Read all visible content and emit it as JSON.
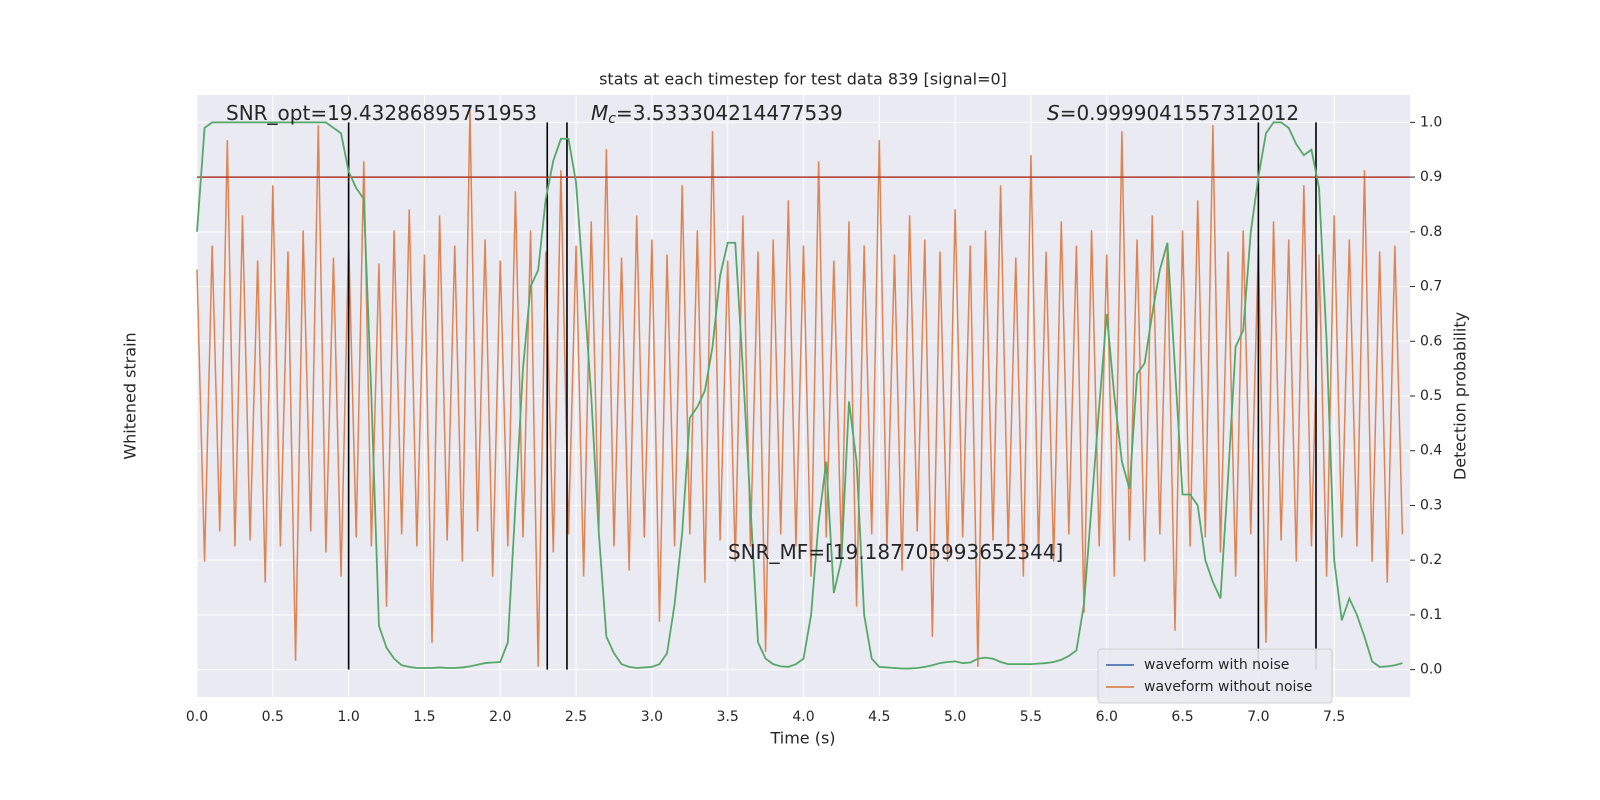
{
  "chart_data": {
    "type": "line",
    "title": "stats at each timestep for test data 839 [signal=0]",
    "xlabel": "Time (s)",
    "ylabel": "Whitened strain",
    "y2label": "Detection probability",
    "xlim": [
      0,
      8.0
    ],
    "ylim": [
      -1,
      1
    ],
    "y2lim": [
      -0.05,
      1.05
    ],
    "xticks": [
      {
        "value": 0,
        "label": "0.0"
      },
      0.5,
      {
        "value": 1,
        "label": "1.0"
      },
      1.5,
      {
        "value": 2,
        "label": "2.0"
      },
      2.5,
      {
        "value": 3,
        "label": "3.0"
      },
      3.5,
      {
        "value": 4,
        "label": "4.0"
      },
      4.5,
      {
        "value": 5,
        "label": "5.0"
      },
      5.5,
      {
        "value": 6,
        "label": "6.0"
      },
      6.5,
      {
        "value": 7,
        "label": "7.0"
      },
      7.5
    ],
    "y2ticks": [
      {
        "value": 0,
        "label": "0.0"
      },
      0.1,
      0.2,
      0.3,
      0.4,
      0.5,
      0.6,
      0.7,
      0.8,
      0.9,
      {
        "value": 1,
        "label": "1.0"
      }
    ],
    "grid": true,
    "legend": "lower right",
    "x": [
      0,
      0.05,
      0.1,
      0.15,
      0.2,
      0.25,
      0.3,
      0.35,
      0.4,
      0.45,
      0.5,
      0.55,
      0.6,
      0.65,
      0.7,
      0.75,
      0.8,
      0.85,
      0.9,
      0.95,
      1,
      1.05,
      1.1,
      1.15,
      1.2,
      1.25,
      1.3,
      1.35,
      1.4,
      1.45,
      1.5,
      1.55,
      1.6,
      1.65,
      1.7,
      1.75,
      1.8,
      1.85,
      1.9,
      1.95,
      2,
      2.05,
      2.1,
      2.15,
      2.2,
      2.25,
      2.3,
      2.35,
      2.4,
      2.45,
      2.5,
      2.55,
      2.6,
      2.65,
      2.7,
      2.75,
      2.8,
      2.85,
      2.9,
      2.95,
      3,
      3.05,
      3.1,
      3.15,
      3.2,
      3.25,
      3.3,
      3.35,
      3.4,
      3.45,
      3.5,
      3.55,
      3.6,
      3.65,
      3.7,
      3.75,
      3.8,
      3.85,
      3.9,
      3.95,
      4,
      4.05,
      4.1,
      4.15,
      4.2,
      4.25,
      4.3,
      4.35,
      4.4,
      4.45,
      4.5,
      4.55,
      4.6,
      4.65,
      4.7,
      4.75,
      4.8,
      4.85,
      4.9,
      4.95,
      5,
      5.05,
      5.1,
      5.15,
      5.2,
      5.25,
      5.3,
      5.35,
      5.4,
      5.45,
      5.5,
      5.55,
      5.6,
      5.65,
      5.7,
      5.75,
      5.8,
      5.85,
      5.9,
      5.95,
      6,
      6.05,
      6.1,
      6.15,
      6.2,
      6.25,
      6.3,
      6.35,
      6.4,
      6.45,
      6.5,
      6.55,
      6.6,
      6.65,
      6.7,
      6.75,
      6.8,
      6.85,
      6.9,
      6.95,
      7,
      7.05,
      7.1,
      7.15,
      7.2,
      7.25,
      7.3,
      7.35,
      7.4,
      7.45,
      7.5,
      7.55,
      7.6,
      7.65,
      7.7,
      7.75,
      7.8,
      7.85,
      7.9,
      7.95
    ],
    "series": [
      {
        "name": "waveform with noise",
        "color": "#4c72b0"
      },
      {
        "name": "waveform without noise",
        "color": "#dd8452",
        "values": [
          0.42,
          -0.55,
          0.5,
          -0.45,
          0.85,
          -0.5,
          0.6,
          -0.48,
          0.45,
          -0.62,
          0.7,
          -0.5,
          0.48,
          -0.88,
          0.55,
          -0.45,
          0.9,
          -0.52,
          0.46,
          -0.6,
          0.52,
          -0.47,
          0.78,
          -0.5,
          0.44,
          -0.7,
          0.55,
          -0.46,
          0.62,
          -0.5,
          0.47,
          -0.82,
          0.6,
          -0.48,
          0.5,
          -0.55,
          0.95,
          -0.45,
          0.52,
          -0.6,
          0.45,
          -0.5,
          0.68,
          -0.47,
          0.55,
          -0.9,
          0.48,
          -0.52,
          0.75,
          -0.46,
          0.5,
          -0.6,
          0.58,
          -0.45,
          0.82,
          -0.5,
          0.46,
          -0.58,
          0.6,
          -0.47,
          0.52,
          -0.75,
          0.47,
          -0.5,
          0.7,
          -0.46,
          0.55,
          -0.62,
          0.88,
          -0.48,
          0.45,
          -0.55,
          0.6,
          -0.5,
          0.48,
          -0.85,
          0.52,
          -0.46,
          0.65,
          -0.5,
          0.5,
          -0.6,
          0.78,
          -0.47,
          0.45,
          -0.52,
          0.58,
          -0.7,
          0.5,
          -0.46,
          0.85,
          -0.5,
          0.47,
          -0.58,
          0.6,
          -0.45,
          0.52,
          -0.8,
          0.48,
          -0.55,
          0.62,
          -0.47,
          0.5,
          -0.9,
          0.55,
          -0.48,
          0.7,
          -0.5,
          0.46,
          -0.6,
          0.8,
          -0.52,
          0.48,
          -0.55,
          0.58,
          -0.46,
          0.5,
          -0.72,
          0.55,
          -0.5,
          0.47,
          -0.6,
          0.88,
          -0.48,
          0.52,
          -0.55,
          0.6,
          -0.46,
          0.5,
          -0.78,
          0.55,
          -0.5,
          0.65,
          -0.47,
          0.9,
          -0.52,
          0.48,
          -0.6,
          0.55,
          -0.46,
          0.5,
          -0.82,
          0.58,
          -0.48,
          0.52,
          -0.55,
          0.7,
          -0.5,
          0.47,
          -0.6,
          0.6,
          -0.47,
          0.52,
          -0.5,
          0.75,
          -0.55,
          0.48,
          -0.62,
          0.5,
          -0.46
        ]
      },
      {
        "color": "#55a868",
        "axis": "y2",
        "values": [
          0.8,
          0.99,
          1,
          1,
          1,
          1,
          1,
          1,
          1,
          1,
          1,
          1,
          1,
          1,
          1,
          1,
          1,
          1,
          0.99,
          0.98,
          0.91,
          0.88,
          0.86,
          0.5,
          0.08,
          0.04,
          0.02,
          0.008,
          0.005,
          0.003,
          0.003,
          0.003,
          0.004,
          0.003,
          0.003,
          0.004,
          0.006,
          0.009,
          0.012,
          0.013,
          0.014,
          0.05,
          0.3,
          0.55,
          0.7,
          0.73,
          0.86,
          0.93,
          0.97,
          0.97,
          0.89,
          0.7,
          0.5,
          0.25,
          0.06,
          0.03,
          0.01,
          0.005,
          0.003,
          0.004,
          0.005,
          0.01,
          0.03,
          0.12,
          0.25,
          0.46,
          0.48,
          0.51,
          0.59,
          0.72,
          0.78,
          0.78,
          0.55,
          0.3,
          0.05,
          0.02,
          0.01,
          0.006,
          0.005,
          0.01,
          0.02,
          0.1,
          0.27,
          0.38,
          0.14,
          0.2,
          0.49,
          0.38,
          0.1,
          0.02,
          0.005,
          0.004,
          0.003,
          0.002,
          0.002,
          0.003,
          0.005,
          0.008,
          0.012,
          0.014,
          0.015,
          0.012,
          0.013,
          0.02,
          0.022,
          0.02,
          0.014,
          0.01,
          0.01,
          0.01,
          0.01,
          0.011,
          0.012,
          0.014,
          0.018,
          0.025,
          0.035,
          0.12,
          0.3,
          0.48,
          0.65,
          0.5,
          0.38,
          0.33,
          0.54,
          0.56,
          0.65,
          0.73,
          0.78,
          0.55,
          0.32,
          0.32,
          0.3,
          0.2,
          0.16,
          0.13,
          0.35,
          0.59,
          0.62,
          0.8,
          0.9,
          0.98,
          1,
          1,
          0.99,
          0.96,
          0.94,
          0.95,
          0.88,
          0.6,
          0.2,
          0.09,
          0.13,
          0.1,
          0.06,
          0.015,
          0.005,
          0.006,
          0.008,
          0.012
        ]
      }
    ],
    "vlines": [
      1.0,
      2.31,
      2.44,
      7.0,
      7.38
    ],
    "hline": {
      "value": 0.9,
      "color": "#b03a2e"
    },
    "annotations": [
      {
        "text": "SNR_opt=19.43286895751953"
      },
      {
        "symbol": "M",
        "subscript": "c",
        "text": "=3.533304214477539"
      },
      {
        "symbol": "S",
        "text": "=0.9999041557312012"
      },
      {
        "text": "SNR_MF=[19.187705993652344]"
      }
    ]
  }
}
